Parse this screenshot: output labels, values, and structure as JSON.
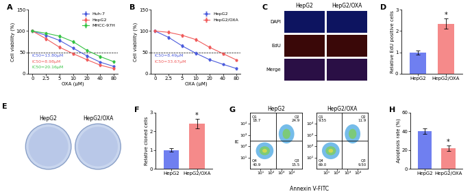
{
  "chart_data": [
    {
      "panel": "A",
      "type": "line",
      "xlabel": "OXA (μM)",
      "ylabel": "Cell viability (%)",
      "categories": [
        "0",
        "2.5",
        "5",
        "10",
        "20",
        "40",
        "80"
      ],
      "series": [
        {
          "name": "Huh-7",
          "color": "#4a5bdc",
          "marker": "o",
          "values": [
            100,
            90,
            78,
            60,
            42,
            27,
            17
          ],
          "errors": [
            3,
            3,
            3,
            3,
            3,
            2,
            2
          ]
        },
        {
          "name": "HepG2",
          "color": "#f05a5a",
          "marker": "o",
          "values": [
            100,
            82,
            62,
            47,
            33,
            20,
            12
          ],
          "errors": [
            3,
            3,
            3,
            3,
            2,
            2,
            2
          ]
        },
        {
          "name": "MHCC-97H",
          "color": "#33c242",
          "marker": "o",
          "values": [
            100,
            95,
            88,
            75,
            55,
            40,
            28
          ],
          "errors": [
            3,
            3,
            3,
            3,
            3,
            3,
            2
          ]
        }
      ],
      "ylim": [
        0,
        150
      ],
      "yticks": [
        0,
        50,
        100,
        150
      ],
      "hline": 50,
      "legend": "upper right",
      "annotations": [
        {
          "text": "IC50=13.80μM",
          "color": "#4a5bdc"
        },
        {
          "text": "IC50=8.98μM",
          "color": "#f05a5a"
        },
        {
          "text": "IC50=20.16μM",
          "color": "#33c242"
        }
      ]
    },
    {
      "panel": "B",
      "type": "line",
      "xlabel": "OXA (μM)",
      "ylabel": "Cell viability (%)",
      "categories": [
        "0",
        "2.5",
        "5",
        "10",
        "20",
        "40",
        "80"
      ],
      "series": [
        {
          "name": "HepG2",
          "color": "#4a5bdc",
          "marker": "o",
          "values": [
            100,
            85,
            65,
            48,
            33,
            22,
            12
          ],
          "errors": [
            3,
            3,
            3,
            3,
            2,
            2,
            2
          ]
        },
        {
          "name": "HepG2/OXA",
          "color": "#f05a5a",
          "marker": "o",
          "values": [
            100,
            97,
            90,
            80,
            62,
            47,
            32
          ],
          "errors": [
            3,
            3,
            3,
            3,
            3,
            3,
            2
          ]
        }
      ],
      "ylim": [
        0,
        150
      ],
      "yticks": [
        0,
        50,
        100,
        150
      ],
      "hline": 50,
      "legend": "upper right",
      "annotations": [
        {
          "text": "IC50=8.49μM",
          "color": "#4a5bdc"
        },
        {
          "text": "IC50=33.67μM",
          "color": "#f05a5a"
        }
      ]
    },
    {
      "panel": "D",
      "type": "bar",
      "ylabel": "Relative EdU positive cells",
      "categories": [
        "HepG2",
        "HepG2/OXA"
      ],
      "values": [
        1.0,
        2.35
      ],
      "errors": [
        0.1,
        0.25
      ],
      "colors": [
        "#6f7ff0",
        "#f58a8a"
      ],
      "ylim": [
        0,
        3
      ],
      "yticks": [
        0,
        1,
        2,
        3
      ],
      "annotations": [
        {
          "text": "*",
          "category": "HepG2/OXA"
        }
      ]
    },
    {
      "panel": "F",
      "type": "bar",
      "ylabel": "Relative cloned cells",
      "categories": [
        "HepG2",
        "HepG2/OXA"
      ],
      "values": [
        1.0,
        2.4
      ],
      "errors": [
        0.1,
        0.25
      ],
      "colors": [
        "#6f7ff0",
        "#f58a8a"
      ],
      "ylim": [
        0,
        3
      ],
      "yticks": [
        0,
        1,
        2,
        3
      ],
      "annotations": [
        {
          "text": "*",
          "category": "HepG2/OXA"
        }
      ]
    },
    {
      "panel": "G",
      "type": "flow",
      "xlabel": "Annexin V-FITC",
      "ylabel": "PI",
      "xlim": [
        1,
        100000
      ],
      "ylim": [
        1,
        100000
      ],
      "xticks": [
        {
          "value": 10,
          "label": "10¹"
        },
        {
          "value": 100,
          "label": "10²"
        },
        {
          "value": 1000,
          "label": "10³"
        },
        {
          "value": 10000,
          "label": "10⁴"
        }
      ],
      "yticks": [
        {
          "value": 10,
          "label": "10¹"
        },
        {
          "value": 100,
          "label": "10²"
        },
        {
          "value": 1000,
          "label": "10³"
        },
        {
          "value": 10000,
          "label": "10⁴"
        }
      ],
      "gates": {
        "x": 300,
        "y": 300
      },
      "plots": [
        {
          "title": "HepG2",
          "quadrants": [
            {
              "name": "Q1",
              "value": 18.7,
              "label": "18.7"
            },
            {
              "name": "Q2",
              "value": 24.9,
              "label": "24.9"
            },
            {
              "name": "Q3",
              "value": 15.5,
              "label": "15.5"
            },
            {
              "name": "Q4",
              "value": 40.9,
              "label": "40.9"
            }
          ]
        },
        {
          "title": "HepG2/OXA",
          "quadrants": [
            {
              "name": "Q1",
              "value": 9.55,
              "label": "9.55"
            },
            {
              "name": "Q2",
              "value": 11.9,
              "label": "11.9"
            },
            {
              "name": "Q3",
              "value": 9.5,
              "label": "9.50"
            },
            {
              "name": "Q4",
              "value": 69.0,
              "label": "69.0"
            }
          ]
        }
      ]
    },
    {
      "panel": "H",
      "type": "bar",
      "ylabel": "Apoptosis rate (%)",
      "categories": [
        "HepG2",
        "HepG2/OXA"
      ],
      "values": [
        40,
        22
      ],
      "errors": [
        3,
        3
      ],
      "colors": [
        "#6f7ff0",
        "#f58a8a"
      ],
      "ylim": [
        0,
        60
      ],
      "yticks": [
        0,
        20,
        40,
        60
      ],
      "annotations": [
        {
          "text": "*",
          "category": "HepG2/OXA"
        }
      ]
    }
  ],
  "images": [
    {
      "panel": "C",
      "type": "micrographs",
      "columns": [
        "HepG2",
        "HepG2/OXA"
      ],
      "rows": [
        "DAPI",
        "EdU",
        "Merge"
      ]
    },
    {
      "panel": "E",
      "type": "plates",
      "columns": [
        "HepG2",
        "HepG2/OXA"
      ]
    }
  ]
}
